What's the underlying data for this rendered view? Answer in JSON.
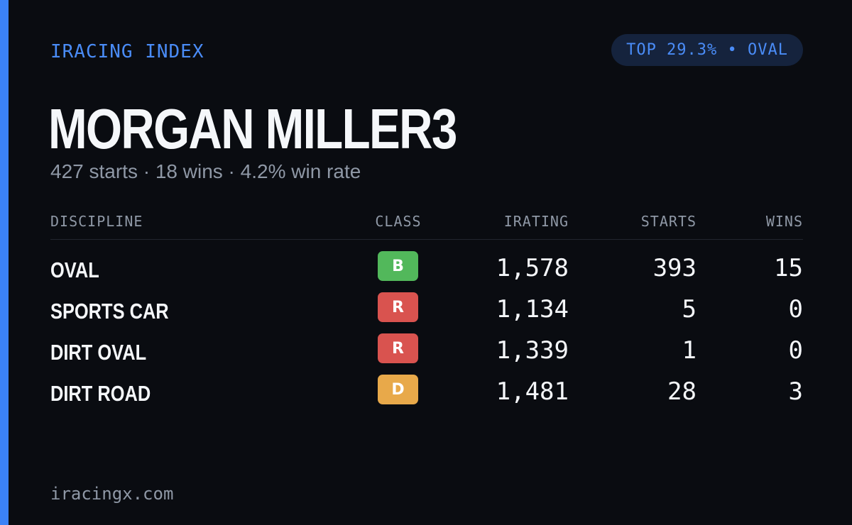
{
  "brand": "IRACING INDEX",
  "rank_pill": "TOP 29.3% • OVAL",
  "driver": {
    "name": "MORGAN MILLER3",
    "summary": "427 starts · 18 wins · 4.2% win rate"
  },
  "table": {
    "headers": {
      "discipline": "DISCIPLINE",
      "class": "CLASS",
      "irating": "IRATING",
      "starts": "STARTS",
      "wins": "WINS"
    },
    "rows": [
      {
        "discipline": "OVAL",
        "class": "B",
        "class_color": "#52b85b",
        "irating": "1,578",
        "starts": "393",
        "wins": "15"
      },
      {
        "discipline": "SPORTS CAR",
        "class": "R",
        "class_color": "#d9534f",
        "irating": "1,134",
        "starts": "5",
        "wins": "0"
      },
      {
        "discipline": "DIRT OVAL",
        "class": "R",
        "class_color": "#d9534f",
        "irating": "1,339",
        "starts": "1",
        "wins": "0"
      },
      {
        "discipline": "DIRT ROAD",
        "class": "D",
        "class_color": "#e8a94a",
        "irating": "1,481",
        "starts": "28",
        "wins": "3"
      }
    ]
  },
  "footer": "iracingx.com",
  "colors": {
    "background": "#0a0c11",
    "accent": "#3b82f6",
    "muted_text": "#8f98a6"
  }
}
